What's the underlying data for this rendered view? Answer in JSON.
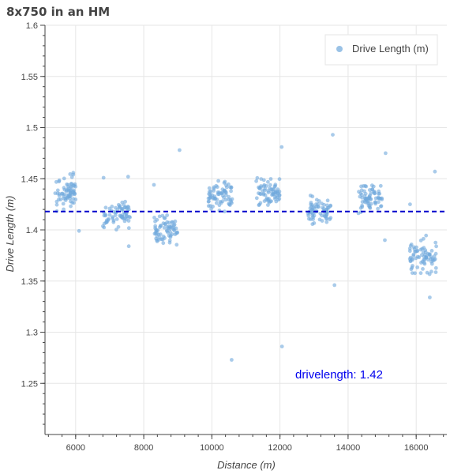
{
  "title": "8x750 in an HM",
  "chart_data": {
    "type": "scatter",
    "title": "8x750 in an HM",
    "xlabel": "Distance (m)",
    "ylabel": "Drive Length (m)",
    "xlim": [
      5100,
      16900
    ],
    "ylim": [
      1.2,
      1.6
    ],
    "x_ticks": [
      6000,
      8000,
      10000,
      12000,
      14000,
      16000
    ],
    "y_ticks": [
      1.25,
      1.3,
      1.35,
      1.4,
      1.45,
      1.5,
      1.55,
      1.6
    ],
    "grid": true,
    "legend": {
      "position": "top-right",
      "entries": [
        "Drive Length (m)"
      ]
    },
    "reference_line": {
      "y": 1.418,
      "style": "dashed",
      "color": "#0000cc"
    },
    "annotation": {
      "text": "drivelength:   1.42",
      "x": 12450,
      "y": 1.255
    },
    "series_color": "#6fa8dc",
    "series": [
      {
        "name": "Drive Length (m)",
        "clusters": [
          {
            "x_range": [
              5400,
              6000
            ],
            "center": 1.437,
            "spread": 0.012,
            "n": 70
          },
          {
            "x_range": [
              6800,
              7600
            ],
            "center": 1.415,
            "spread": 0.01,
            "n": 70
          },
          {
            "x_range": [
              8300,
              9000
            ],
            "center": 1.4,
            "spread": 0.01,
            "n": 70
          },
          {
            "x_range": [
              9900,
              10600
            ],
            "center": 1.433,
            "spread": 0.01,
            "n": 70
          },
          {
            "x_range": [
              11300,
              12000
            ],
            "center": 1.436,
            "spread": 0.01,
            "n": 70
          },
          {
            "x_range": [
              12800,
              13500
            ],
            "center": 1.418,
            "spread": 0.01,
            "n": 70
          },
          {
            "x_range": [
              14300,
              15000
            ],
            "center": 1.43,
            "spread": 0.012,
            "n": 70
          },
          {
            "x_range": [
              15800,
              16600
            ],
            "center": 1.375,
            "spread": 0.014,
            "n": 75
          }
        ],
        "outliers": [
          {
            "x": 6100,
            "y": 1.399
          },
          {
            "x": 6820,
            "y": 1.451
          },
          {
            "x": 7540,
            "y": 1.452
          },
          {
            "x": 7560,
            "y": 1.384
          },
          {
            "x": 8300,
            "y": 1.444
          },
          {
            "x": 9050,
            "y": 1.478
          },
          {
            "x": 10580,
            "y": 1.273
          },
          {
            "x": 12050,
            "y": 1.481
          },
          {
            "x": 12060,
            "y": 1.286
          },
          {
            "x": 13550,
            "y": 1.493
          },
          {
            "x": 13600,
            "y": 1.346
          },
          {
            "x": 15100,
            "y": 1.475
          },
          {
            "x": 15080,
            "y": 1.39
          },
          {
            "x": 16550,
            "y": 1.457
          },
          {
            "x": 15820,
            "y": 1.425
          },
          {
            "x": 16400,
            "y": 1.334
          }
        ]
      }
    ]
  }
}
